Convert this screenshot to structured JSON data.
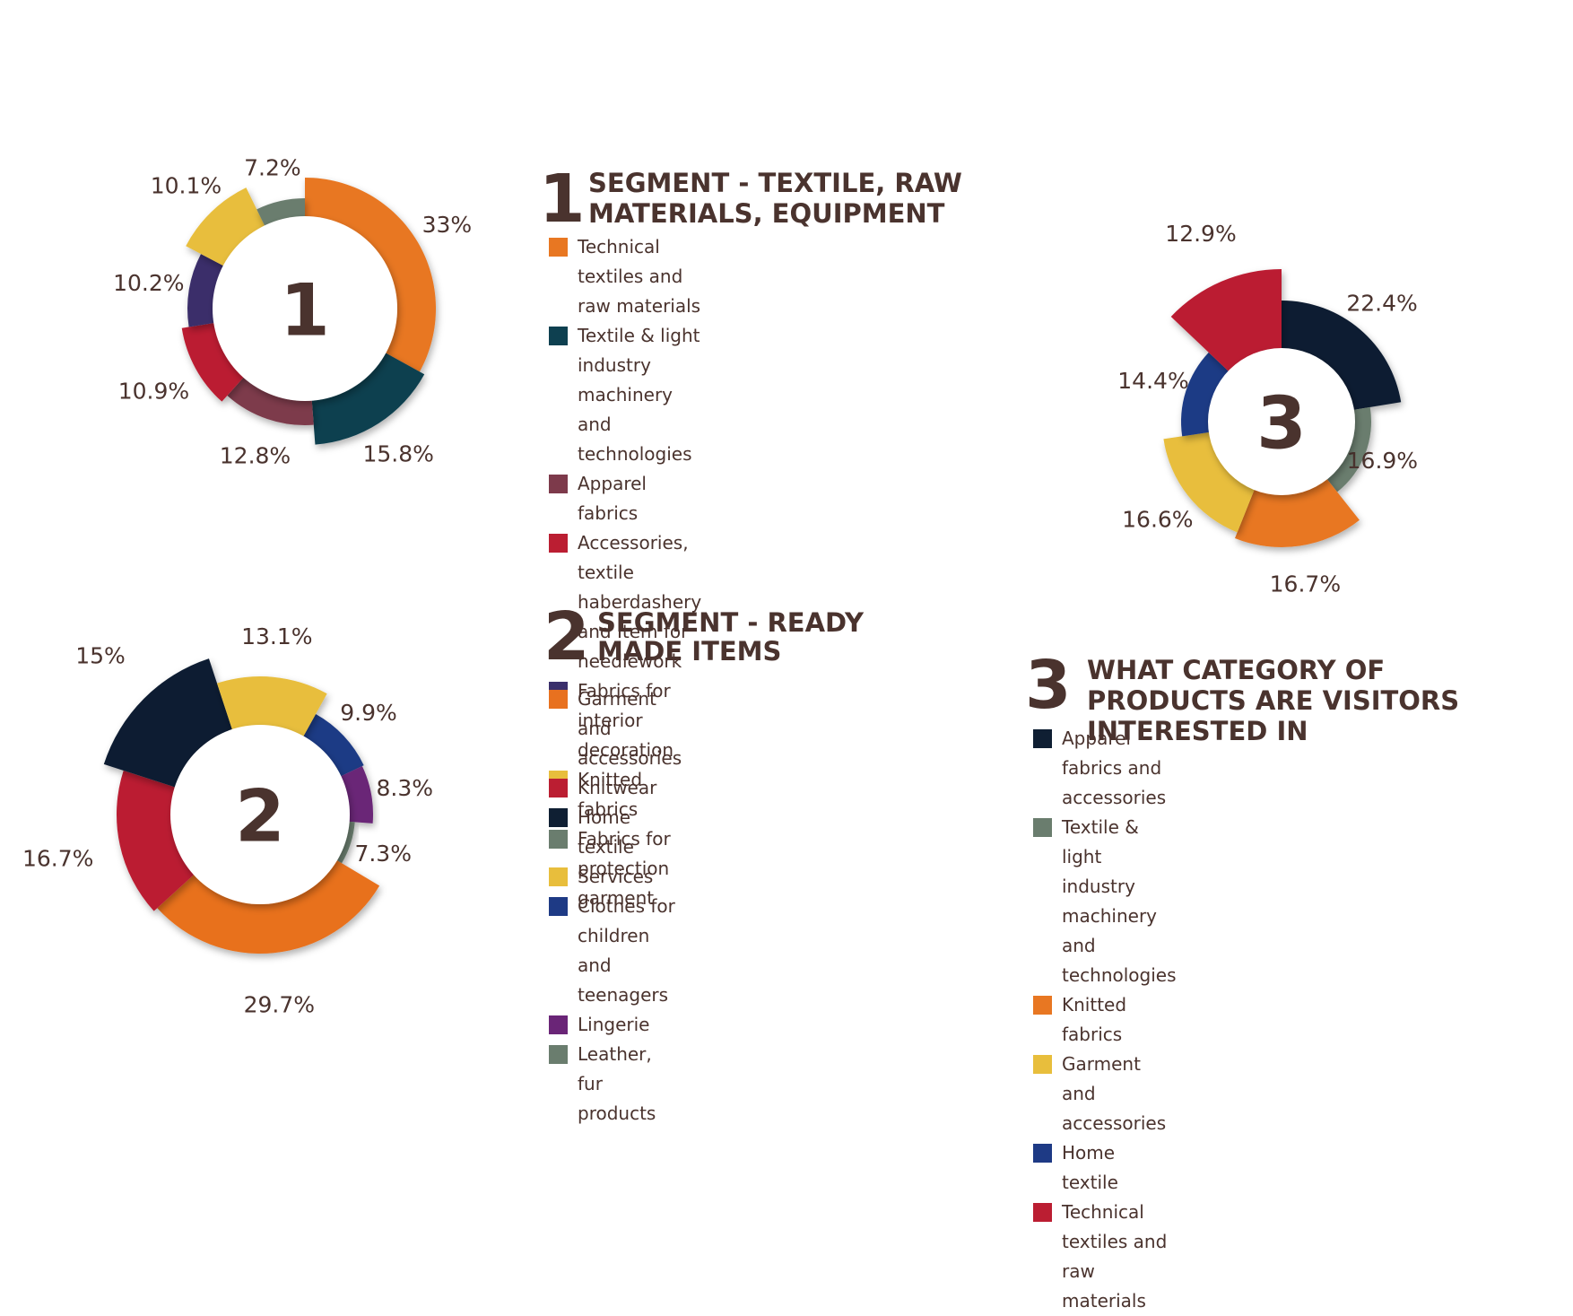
{
  "sections": [
    {
      "number": "1",
      "heading": "SEGMENT - TEXTILE, RAW MATERIALS, EQUIPMENT",
      "legend": [
        {
          "label": "Technical textiles and raw materials",
          "color": "#e87722"
        },
        {
          "label": "Textile & light industry machinery and technologies",
          "color": "#0e4050"
        },
        {
          "label": "Apparel fabrics",
          "color": "#7d3a4b"
        },
        {
          "label": "Accessories, textile haberdashery\nand Item for needlework",
          "color": "#bb1e32"
        },
        {
          "label": "Fabrics for interior decoration",
          "color": "#3a2f6b"
        },
        {
          "label": "Knitted fabrics",
          "color": "#e8be3c"
        },
        {
          "label": "Fabrics for protection garment",
          "color": "#6a7d6e"
        }
      ]
    },
    {
      "number": "2",
      "heading": "SEGMENT - READY MADE ITEMS",
      "legend": [
        {
          "label": "Garment and accessories",
          "color": "#e8711f"
        },
        {
          "label": "Knitwear",
          "color": "#bb1e32"
        },
        {
          "label": "Home textile",
          "color": "#0f1f33"
        },
        {
          "label": "Services",
          "color": "#e8be3c"
        },
        {
          "label": "Clothes for children and teenagers",
          "color": "#1e3a85"
        },
        {
          "label": "Lingerie",
          "color": "#6a2577"
        },
        {
          "label": "Leather, fur products",
          "color": "#6a7d6e"
        }
      ]
    },
    {
      "number": "3",
      "heading": "WHAT CATEGORY OF PRODUCTS ARE VISITORS INTERESTED IN",
      "legend": [
        {
          "label": "Apparel fabrics and accessories",
          "color": "#0f1f33"
        },
        {
          "label": "Textile & light industry machinery and technologies",
          "color": "#6a7d6e"
        },
        {
          "label": "Knitted fabrics",
          "color": "#e87722"
        },
        {
          "label": "Garment and accessories",
          "color": "#e8be3c"
        },
        {
          "label": "Home textile",
          "color": "#1e3a85"
        },
        {
          "label": "Technical textiles and raw materials",
          "color": "#bb1e32"
        }
      ]
    }
  ],
  "chart_data": [
    {
      "type": "pie",
      "center_label": "1",
      "slices": [
        {
          "label": "33%",
          "value": 33,
          "color": "#e87722"
        },
        {
          "label": "15.8%",
          "value": 15.8,
          "color": "#0e4050"
        },
        {
          "label": "12.8%",
          "value": 12.8,
          "color": "#7d3a4b"
        },
        {
          "label": "10.9%",
          "value": 10.9,
          "color": "#bb1e32"
        },
        {
          "label": "10.2%",
          "value": 10.2,
          "color": "#3a2f6b"
        },
        {
          "label": "10.1%",
          "value": 10.1,
          "color": "#e8be3c"
        },
        {
          "label": "7.2%",
          "value": 7.2,
          "color": "#6a7d6e"
        }
      ]
    },
    {
      "type": "pie",
      "center_label": "2",
      "slices": [
        {
          "label": "9.9%",
          "value": 9.9,
          "color": "#1e3a85"
        },
        {
          "label": "8.3%",
          "value": 8.3,
          "color": "#6a2577"
        },
        {
          "label": "7.3%",
          "value": 7.3,
          "color": "#6a7d6e"
        },
        {
          "label": "29.7%",
          "value": 29.7,
          "color": "#e8711f"
        },
        {
          "label": "16.7%",
          "value": 16.7,
          "color": "#bb1e32"
        },
        {
          "label": "15%",
          "value": 15,
          "color": "#0f1f33"
        },
        {
          "label": "13.1%",
          "value": 13.1,
          "color": "#e8be3c"
        }
      ]
    },
    {
      "type": "pie",
      "center_label": "3",
      "slices": [
        {
          "label": "22.4%",
          "value": 22.4,
          "color": "#0f1f33"
        },
        {
          "label": "16.9%",
          "value": 16.9,
          "color": "#6a7d6e"
        },
        {
          "label": "16.7%",
          "value": 16.7,
          "color": "#e87722"
        },
        {
          "label": "16.6%",
          "value": 16.6,
          "color": "#e8be3c"
        },
        {
          "label": "14.4%",
          "value": 14.4,
          "color": "#1e3a85"
        },
        {
          "label": "12.9%",
          "value": 12.9,
          "color": "#bb1e32"
        }
      ]
    }
  ]
}
